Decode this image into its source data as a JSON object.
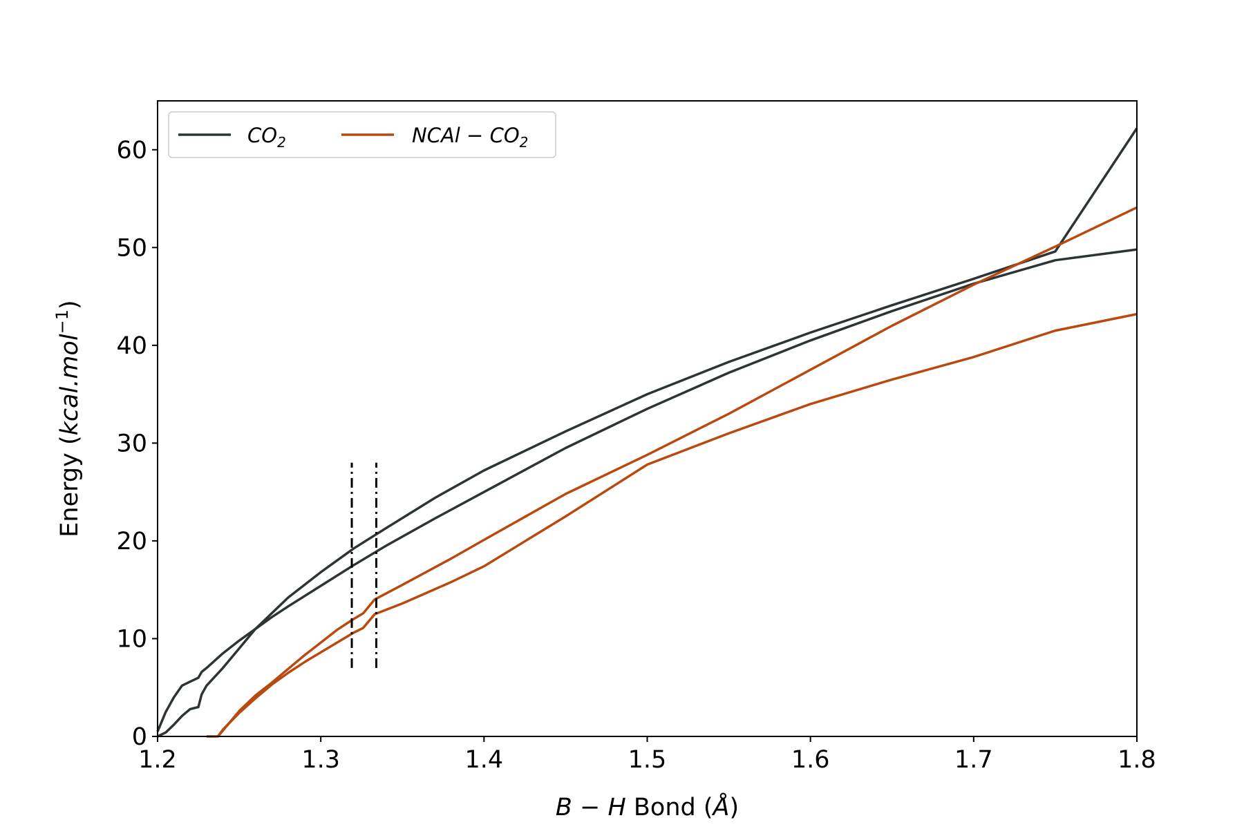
{
  "chart_data": {
    "type": "line",
    "xlabel": {
      "italic": "B − H",
      "text": " Bond (",
      "unit": "Å",
      "close": ")"
    },
    "ylabel": {
      "text": "Energy (",
      "unit_italic": "kcal.mol",
      "sup": "−1",
      "close": ")"
    },
    "xlim": [
      1.2,
      1.8
    ],
    "ylim": [
      0,
      65
    ],
    "x_ticks": [
      1.2,
      1.3,
      1.4,
      1.5,
      1.6,
      1.7,
      1.8
    ],
    "x_tick_labels": [
      "1.2",
      "1.3",
      "1.4",
      "1.5",
      "1.6",
      "1.7",
      "1.8"
    ],
    "y_ticks": [
      0,
      10,
      20,
      30,
      40,
      50,
      60
    ],
    "y_tick_labels": [
      "0",
      "10",
      "20",
      "30",
      "40",
      "50",
      "60"
    ],
    "grid": false,
    "legend": {
      "placement": "top-left",
      "entries": [
        {
          "base": "CO",
          "sub": "2",
          "color": "#2d3436"
        },
        {
          "base": "NCAl − CO",
          "sub": "2",
          "color": "#b84a0f"
        }
      ]
    },
    "series": [
      {
        "legend_index": 0,
        "color": "#2d3436",
        "x": [
          1.2,
          1.205,
          1.21,
          1.215,
          1.22,
          1.225,
          1.227,
          1.23,
          1.24,
          1.25,
          1.26,
          1.27,
          1.28,
          1.3,
          1.32,
          1.34,
          1.37,
          1.4,
          1.45,
          1.5,
          1.55,
          1.6,
          1.65,
          1.7,
          1.75,
          1.8
        ],
        "y": [
          0.5,
          2.5,
          4.0,
          5.2,
          5.6,
          6.0,
          6.6,
          7.0,
          8.5,
          9.8,
          11.0,
          12.2,
          13.3,
          15.4,
          17.5,
          19.5,
          22.3,
          25.0,
          29.5,
          33.5,
          37.2,
          40.5,
          43.5,
          46.3,
          48.7,
          49.8
        ]
      },
      {
        "legend_index": 0,
        "color": "#2d3436",
        "x": [
          1.2,
          1.205,
          1.21,
          1.215,
          1.22,
          1.225,
          1.227,
          1.23,
          1.24,
          1.25,
          1.26,
          1.28,
          1.3,
          1.32,
          1.34,
          1.37,
          1.4,
          1.45,
          1.5,
          1.55,
          1.6,
          1.65,
          1.7,
          1.75,
          1.8
        ],
        "y": [
          0.0,
          0.4,
          1.2,
          2.1,
          2.8,
          3.0,
          4.3,
          5.2,
          7.0,
          9.0,
          11.0,
          14.2,
          16.8,
          19.2,
          21.3,
          24.4,
          27.2,
          31.2,
          35.0,
          38.3,
          41.3,
          44.1,
          46.8,
          49.6,
          62.2
        ]
      },
      {
        "legend_index": 1,
        "color": "#b84a0f",
        "x": [
          1.23,
          1.234,
          1.237,
          1.24,
          1.25,
          1.26,
          1.27,
          1.28,
          1.29,
          1.3,
          1.31,
          1.32,
          1.326,
          1.333,
          1.35,
          1.38,
          1.4,
          1.45,
          1.5,
          1.55,
          1.6,
          1.65,
          1.7,
          1.75,
          1.8
        ],
        "y": [
          0.0,
          0.0,
          0.0,
          0.7,
          2.4,
          3.9,
          5.3,
          6.5,
          7.6,
          8.6,
          9.6,
          10.6,
          11.1,
          12.5,
          13.6,
          15.8,
          17.4,
          22.5,
          27.8,
          31.0,
          34.0,
          36.5,
          38.8,
          41.5,
          43.2
        ]
      },
      {
        "legend_index": 1,
        "color": "#b84a0f",
        "x": [
          1.237,
          1.24,
          1.25,
          1.26,
          1.27,
          1.28,
          1.29,
          1.3,
          1.31,
          1.32,
          1.326,
          1.333,
          1.35,
          1.38,
          1.4,
          1.45,
          1.5,
          1.55,
          1.6,
          1.65,
          1.7,
          1.75,
          1.8
        ],
        "y": [
          0.0,
          0.6,
          2.6,
          4.2,
          5.5,
          6.9,
          8.3,
          9.6,
          10.9,
          12.0,
          12.6,
          14.0,
          15.5,
          18.2,
          20.1,
          24.8,
          28.8,
          33.0,
          37.5,
          42.0,
          46.2,
          50.1,
          54.1
        ]
      }
    ],
    "vertical_markers": [
      {
        "x": 1.319,
        "y_range": [
          7,
          28
        ],
        "style": "dash-dot",
        "color": "#000000"
      },
      {
        "x": 1.334,
        "y_range": [
          7,
          28
        ],
        "style": "dash-dot",
        "color": "#000000"
      }
    ]
  }
}
